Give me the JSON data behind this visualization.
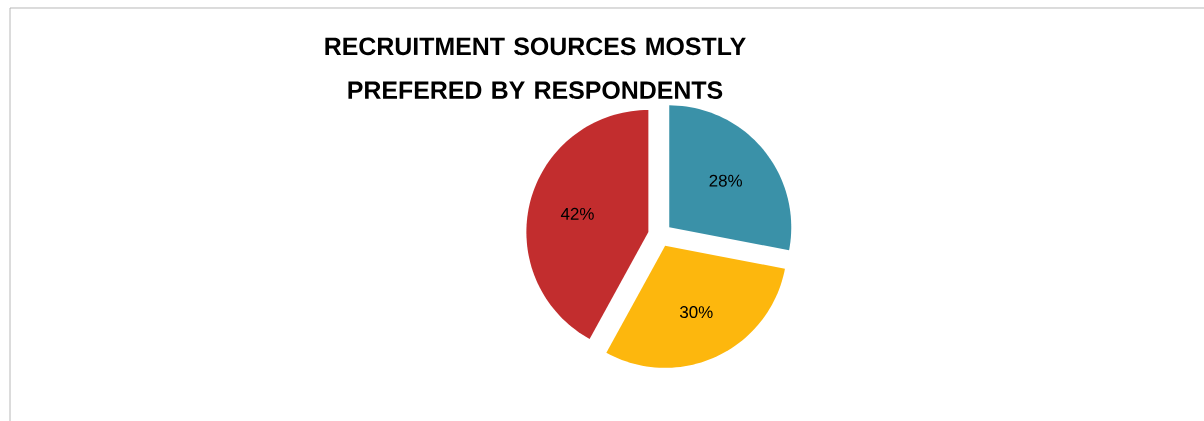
{
  "chart_data": {
    "type": "pie",
    "title": "RECRUITMENT SOURCES MOSTLY PREFERED BY RESPONDENTS",
    "categories": [
      null,
      null,
      null
    ],
    "values": [
      28,
      30,
      42
    ],
    "colors": [
      "#3a91a8",
      "#fdb70d",
      "#c22d2e"
    ],
    "value_labels": [
      "28%",
      "30%",
      "42%"
    ]
  }
}
